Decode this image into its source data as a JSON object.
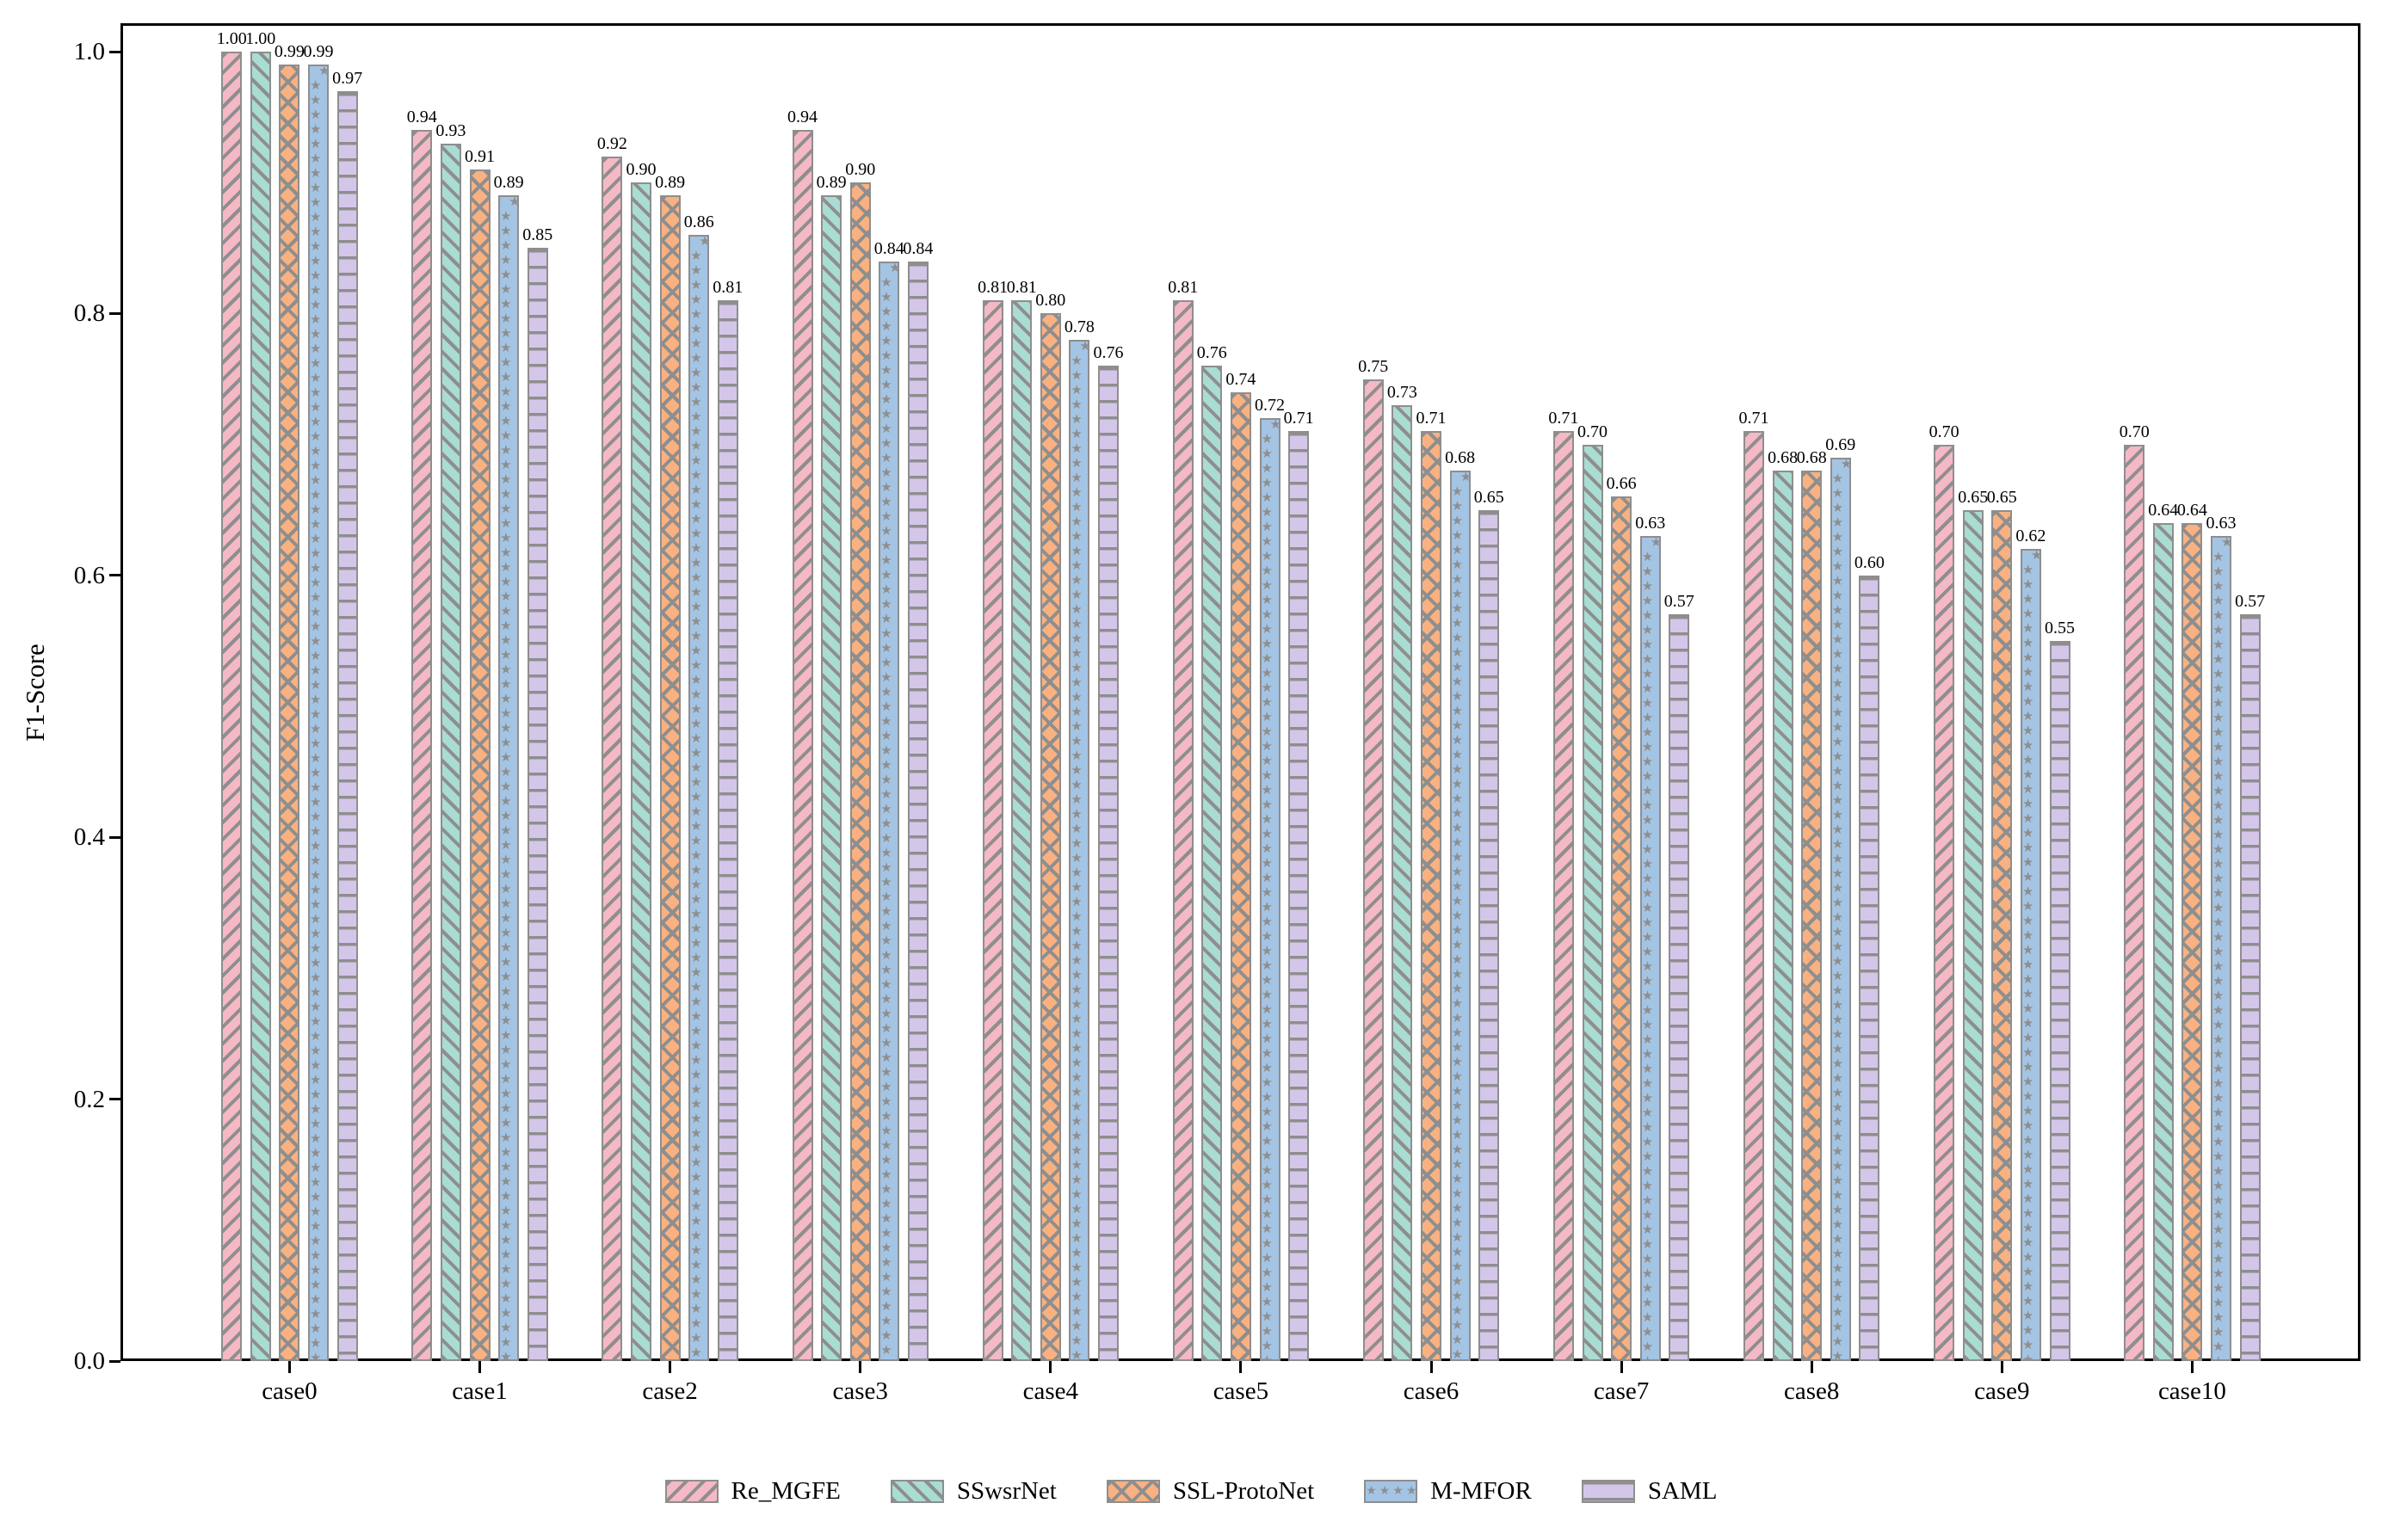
{
  "chart_data": {
    "type": "bar",
    "title": "",
    "xlabel": "",
    "ylabel": "F1-Score",
    "ylim": [
      0.0,
      1.0
    ],
    "yticks": [
      "0.0",
      "0.2",
      "0.4",
      "0.6",
      "0.8",
      "1.0"
    ],
    "ytick_values": [
      0.0,
      0.2,
      0.4,
      0.6,
      0.8,
      1.0
    ],
    "grid": false,
    "legend_position": "bottom-center",
    "bar_label_format": "two-decimals",
    "categories": [
      "case0",
      "case1",
      "case2",
      "case3",
      "case4",
      "case5",
      "case6",
      "case7",
      "case8",
      "case9",
      "case10"
    ],
    "series": [
      {
        "name": "Re_MGFE",
        "color": "#f5b8c5",
        "hatch": "/",
        "values": [
          1.0,
          0.94,
          0.92,
          0.94,
          0.81,
          0.81,
          0.75,
          0.71,
          0.71,
          0.7,
          0.7
        ],
        "labels": [
          "1.00",
          "0.94",
          "0.92",
          "0.94",
          "0.81",
          "0.81",
          "0.75",
          "0.71",
          "0.71",
          "0.70",
          "0.70"
        ]
      },
      {
        "name": "SSwsrNet",
        "color": "#a9dcd3",
        "hatch": "\\",
        "values": [
          1.0,
          0.93,
          0.9,
          0.89,
          0.81,
          0.76,
          0.73,
          0.7,
          0.68,
          0.65,
          0.64
        ],
        "labels": [
          "1.00",
          "0.93",
          "0.90",
          "0.89",
          "0.81",
          "0.76",
          "0.73",
          "0.70",
          "0.68",
          "0.65",
          "0.64"
        ]
      },
      {
        "name": "SSL-ProtoNet",
        "color": "#f9b181",
        "hatch": "x",
        "values": [
          0.99,
          0.91,
          0.89,
          0.9,
          0.8,
          0.74,
          0.71,
          0.66,
          0.68,
          0.65,
          0.64
        ],
        "labels": [
          "0.99",
          "0.91",
          "0.89",
          "0.90",
          "0.80",
          "0.74",
          "0.71",
          "0.66",
          "0.68",
          "0.65",
          "0.64"
        ]
      },
      {
        "name": "M-MFOR",
        "color": "#a4c4e4",
        "hatch": "*",
        "values": [
          0.99,
          0.89,
          0.86,
          0.84,
          0.78,
          0.72,
          0.68,
          0.63,
          0.69,
          0.62,
          0.63
        ],
        "labels": [
          "0.99",
          "0.89",
          "0.86",
          "0.84",
          "0.78",
          "0.72",
          "0.68",
          "0.63",
          "0.69",
          "0.62",
          "0.63"
        ]
      },
      {
        "name": "SAML",
        "color": "#d4c6e9",
        "hatch": "-",
        "values": [
          0.97,
          0.85,
          0.81,
          0.84,
          0.76,
          0.71,
          0.65,
          0.57,
          0.6,
          0.55,
          0.57
        ],
        "labels": [
          "0.97",
          "0.85",
          "0.81",
          "0.84",
          "0.76",
          "0.71",
          "0.65",
          "0.57",
          "0.60",
          "0.55",
          "0.57"
        ]
      }
    ],
    "hatch_color": "#8e8e8e",
    "edge_color": "#8e8e8e",
    "axis_color": "#000000",
    "text_color": "#000000"
  },
  "icons": {
    "star_glyph": "★"
  }
}
